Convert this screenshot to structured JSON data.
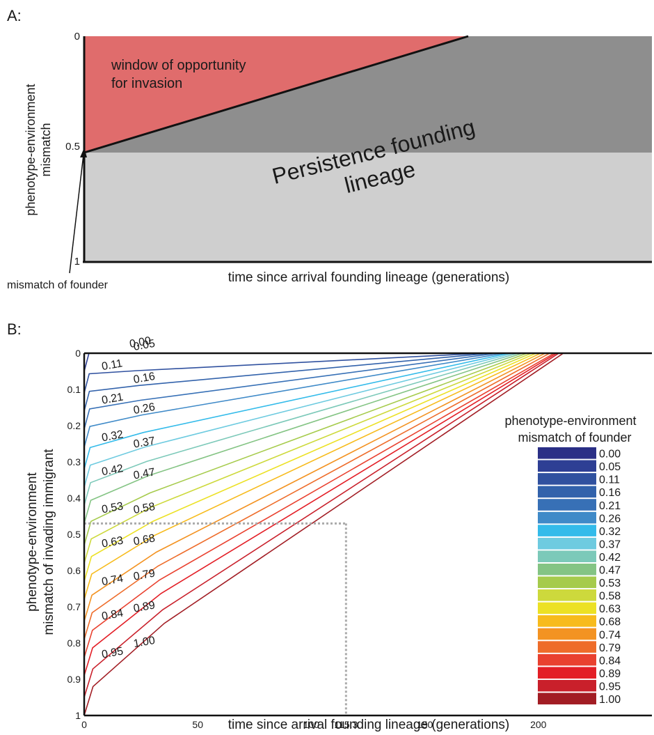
{
  "chart_data": [
    {
      "panel": "A:",
      "type": "area",
      "xlabel": "time since arrival founding lineage (generations)",
      "ylabel_lines": [
        "phenotype-environment",
        "mismatch"
      ],
      "y_ticks": [
        "0",
        "0.5",
        "1"
      ],
      "ylim": [
        0,
        1
      ],
      "y_inverted": true,
      "regions": {
        "window": "window of opportunity\nfor invasion",
        "window_lines": [
          "window of opportunity",
          "for invasion"
        ],
        "persistence_lines": [
          "Persistence founding",
          "lineage"
        ]
      },
      "founder_mismatch": 0.5,
      "annotation": "mismatch of founder",
      "colors": {
        "window": "#e06c6c",
        "persistence_dark": "#8e8e8e",
        "persistence_light": "#cfcfcf"
      }
    },
    {
      "panel": "B:",
      "type": "line",
      "xlabel": "time since arrival founding lineage (generations)",
      "ylabel_lines": [
        "phenotype-environment",
        "mismatch of invading immigrant"
      ],
      "xlim": [
        0,
        250
      ],
      "ylim": [
        0,
        1
      ],
      "y_inverted": true,
      "x_ticks": [
        0,
        50,
        100,
        115.3,
        150,
        200
      ],
      "x_tick_labels": [
        "0",
        "50",
        "100",
        "115.3",
        "150",
        "200"
      ],
      "y_ticks": [
        0,
        0.1,
        0.2,
        0.3,
        0.4,
        0.5,
        0.6,
        0.7,
        0.8,
        0.9,
        1
      ],
      "y_tick_labels": [
        "0",
        "0.1",
        "0.2",
        "0.3",
        "0.4",
        "0.5",
        "0.6",
        "0.7",
        "0.8",
        "0.9",
        "1"
      ],
      "legend_title_lines": [
        "phenotype-environment",
        "mismatch of founder"
      ],
      "legend_position": "right",
      "reference_lines": {
        "x": 115.3,
        "y": 0.47,
        "style": "dotted"
      },
      "series": [
        {
          "name": "0.00",
          "founder": 0.0,
          "x_end": 90,
          "color": "#2b2f86"
        },
        {
          "name": "0.05",
          "founder": 0.05,
          "x_end": 173,
          "color": "#2e3f94"
        },
        {
          "name": "0.11",
          "founder": 0.11,
          "x_end": 176,
          "color": "#30519f"
        },
        {
          "name": "0.16",
          "founder": 0.16,
          "x_end": 179,
          "color": "#3262ab"
        },
        {
          "name": "0.21",
          "founder": 0.21,
          "x_end": 182,
          "color": "#3770b6"
        },
        {
          "name": "0.26",
          "founder": 0.26,
          "x_end": 185,
          "color": "#3f8ac8"
        },
        {
          "name": "0.32",
          "founder": 0.32,
          "x_end": 187,
          "color": "#33bbea"
        },
        {
          "name": "0.37",
          "founder": 0.37,
          "x_end": 189,
          "color": "#6ecbe0"
        },
        {
          "name": "0.42",
          "founder": 0.42,
          "x_end": 191,
          "color": "#7cc9b9"
        },
        {
          "name": "0.47",
          "founder": 0.47,
          "x_end": 193,
          "color": "#84c484"
        },
        {
          "name": "0.53",
          "founder": 0.53,
          "x_end": 195,
          "color": "#a6cb4c"
        },
        {
          "name": "0.58",
          "founder": 0.58,
          "x_end": 197,
          "color": "#cdd93c"
        },
        {
          "name": "0.63",
          "founder": 0.63,
          "x_end": 199,
          "color": "#ece125"
        },
        {
          "name": "0.68",
          "founder": 0.68,
          "x_end": 201,
          "color": "#f7bb1c"
        },
        {
          "name": "0.74",
          "founder": 0.74,
          "x_end": 203,
          "color": "#f39322"
        },
        {
          "name": "0.79",
          "founder": 0.79,
          "x_end": 205,
          "color": "#ee6c2a"
        },
        {
          "name": "0.84",
          "founder": 0.84,
          "x_end": 207,
          "color": "#e9412f"
        },
        {
          "name": "0.89",
          "founder": 0.89,
          "x_end": 208,
          "color": "#e31e26"
        },
        {
          "name": "0.95",
          "founder": 0.95,
          "x_end": 209,
          "color": "#c9202b"
        },
        {
          "name": "1.00",
          "founder": 1.0,
          "x_end": 211,
          "color": "#a21d24"
        }
      ]
    }
  ]
}
